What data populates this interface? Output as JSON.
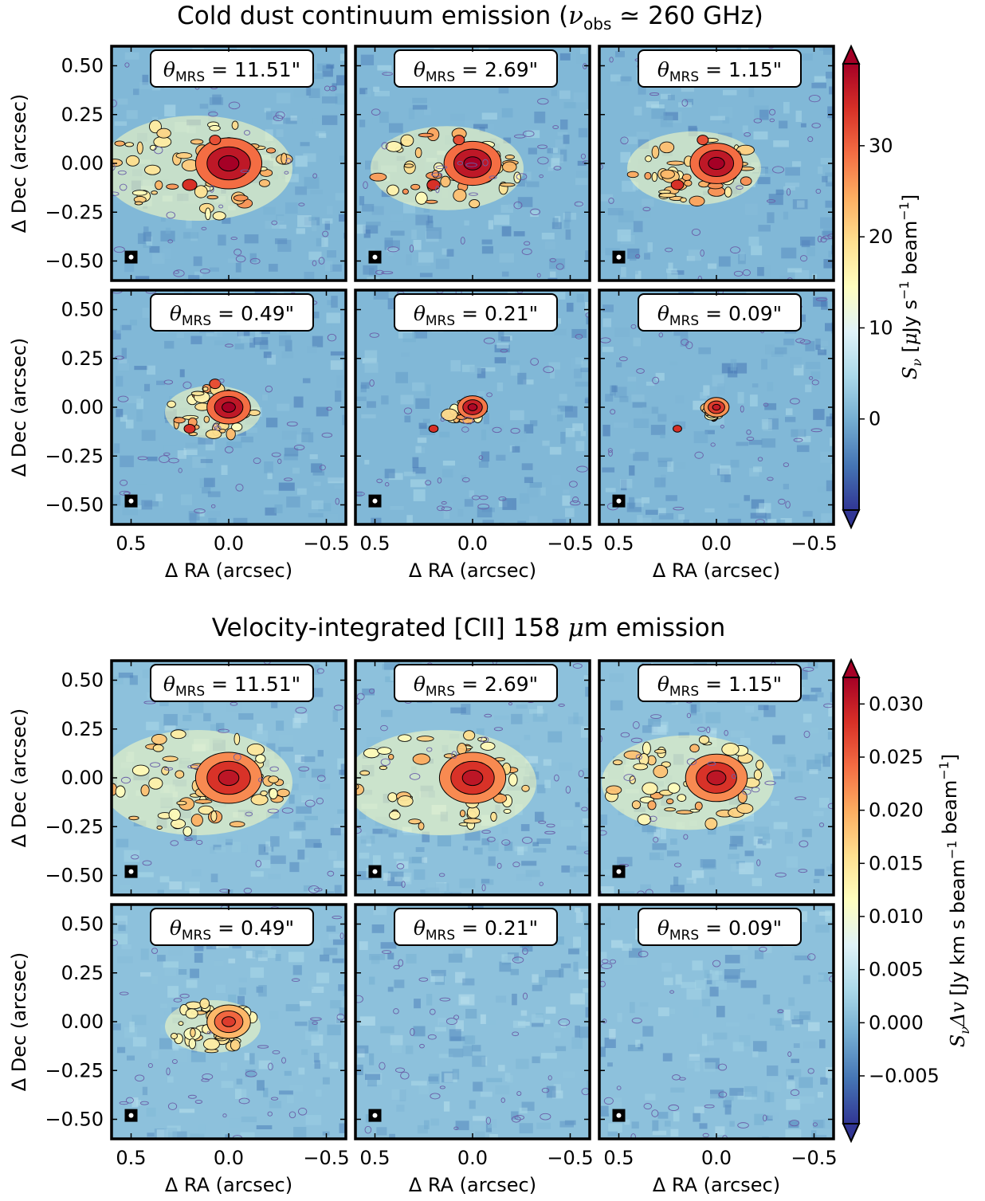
{
  "chart_data": [
    {
      "type": "heatmap",
      "title": "Cold dust continuum emission",
      "title_suffix": "260 GHz",
      "title_symbol": "ν",
      "title_symbol_sub": "obs",
      "title_relation": "≃",
      "xlabel": "Δ RA (arcsec)",
      "ylabel": "Δ Dec (arcsec)",
      "xlim": [
        0.6,
        -0.6
      ],
      "ylim": [
        -0.6,
        0.6
      ],
      "xticks": [
        "0.5",
        "0.0",
        "−0.5"
      ],
      "yticks": [
        "0.50",
        "0.25",
        "0.00",
        "−0.25",
        "−0.50"
      ],
      "colorbar": {
        "label": "S_ν [μJy s⁻¹ beam⁻¹]",
        "label_parts": {
          "sym": "S",
          "sub": "ν",
          "pre": " [",
          "mu": "μ",
          "mid": "Jy s",
          "sup1": "−1",
          "mid2": " beam",
          "sup2": "−1",
          "post": "]"
        },
        "range": [
          -10,
          39
        ],
        "ticks": [
          "0",
          "10",
          "20",
          "30"
        ],
        "tick_values": [
          0,
          10,
          20,
          30
        ],
        "extend": "both",
        "colormap": "RdYlBu_r"
      },
      "panels": [
        {
          "label_sym": "θ",
          "label_sub": "MRS",
          "label_value": " = 11.51\"",
          "extent": 1.0,
          "peak": 1.0
        },
        {
          "label_sym": "θ",
          "label_sub": "MRS",
          "label_value": " = 2.69\"",
          "extent": 0.8,
          "peak": 1.0
        },
        {
          "label_sym": "θ",
          "label_sub": "MRS",
          "label_value": " = 1.15\"",
          "extent": 0.7,
          "peak": 1.0
        },
        {
          "label_sym": "θ",
          "label_sub": "MRS",
          "label_value": " = 0.49\"",
          "extent": 0.5,
          "peak": 1.0
        },
        {
          "label_sym": "θ",
          "label_sub": "MRS",
          "label_value": " = 0.21\"",
          "extent": 0.2,
          "peak": 0.95
        },
        {
          "label_sym": "θ",
          "label_sub": "MRS",
          "label_value": " = 0.09\"",
          "extent": 0.1,
          "peak": 0.8
        }
      ]
    },
    {
      "type": "heatmap",
      "title": "Velocity-integrated [CII] 158 μm emission",
      "title_pre": "Velocity-integrated [CII] 158 ",
      "title_mu": "μ",
      "title_post": "m emission",
      "xlabel": "Δ RA (arcsec)",
      "ylabel": "Δ Dec (arcsec)",
      "xlim": [
        0.6,
        -0.6
      ],
      "ylim": [
        -0.6,
        0.6
      ],
      "xticks": [
        "0.5",
        "0.0",
        "−0.5"
      ],
      "yticks": [
        "0.50",
        "0.25",
        "0.00",
        "−0.25",
        "−0.50"
      ],
      "colorbar": {
        "label": "S_νΔv [Jy km s⁻¹ beam⁻¹]",
        "label_parts": {
          "sym": "S",
          "sub": "ν",
          "sym2": "Δv",
          "pre": " [Jy km s",
          "sup1": "−1",
          "mid": " beam",
          "sup2": "−1",
          "post": "]"
        },
        "range": [
          -0.0095,
          0.0325
        ],
        "ticks": [
          "−0.005",
          "0.000",
          "0.005",
          "0.010",
          "0.015",
          "0.020",
          "0.025",
          "0.030"
        ],
        "tick_values": [
          -0.005,
          0.0,
          0.005,
          0.01,
          0.015,
          0.02,
          0.025,
          0.03
        ],
        "extend": "both",
        "colormap": "RdYlBu_r"
      },
      "panels": [
        {
          "label_sym": "θ",
          "label_sub": "MRS",
          "label_value": " = 11.51\"",
          "extent": 1.0,
          "peak": 0.85
        },
        {
          "label_sym": "θ",
          "label_sub": "MRS",
          "label_value": " = 2.69\"",
          "extent": 1.0,
          "peak": 0.85
        },
        {
          "label_sym": "θ",
          "label_sub": "MRS",
          "label_value": " = 1.15\"",
          "extent": 0.9,
          "peak": 0.85
        },
        {
          "label_sym": "θ",
          "label_sub": "MRS",
          "label_value": " = 0.49\"",
          "extent": 0.5,
          "peak": 0.6
        },
        {
          "label_sym": "θ",
          "label_sub": "MRS",
          "label_value": " = 0.21\"",
          "extent": 0.0,
          "peak": 0.0
        },
        {
          "label_sym": "θ",
          "label_sub": "MRS",
          "label_value": " = 0.09\"",
          "extent": 0.0,
          "peak": 0.0
        }
      ]
    }
  ]
}
